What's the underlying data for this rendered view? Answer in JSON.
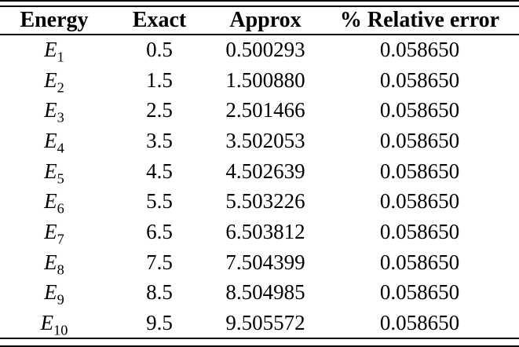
{
  "table": {
    "columns": [
      "Energy",
      "Exact",
      "Approx",
      "% Relative error"
    ],
    "rows": [
      {
        "symbol": "E",
        "subscript": "1",
        "exact": "0.5",
        "approx": "0.500293",
        "error": "0.058650"
      },
      {
        "symbol": "E",
        "subscript": "2",
        "exact": "1.5",
        "approx": "1.500880",
        "error": "0.058650"
      },
      {
        "symbol": "E",
        "subscript": "3",
        "exact": "2.5",
        "approx": "2.501466",
        "error": "0.058650"
      },
      {
        "symbol": "E",
        "subscript": "4",
        "exact": "3.5",
        "approx": "3.502053",
        "error": "0.058650"
      },
      {
        "symbol": "E",
        "subscript": "5",
        "exact": "4.5",
        "approx": "4.502639",
        "error": "0.058650"
      },
      {
        "symbol": "E",
        "subscript": "6",
        "exact": "5.5",
        "approx": "5.503226",
        "error": "0.058650"
      },
      {
        "symbol": "E",
        "subscript": "7",
        "exact": "6.5",
        "approx": "6.503812",
        "error": "0.058650"
      },
      {
        "symbol": "E",
        "subscript": "8",
        "exact": "7.5",
        "approx": "7.504399",
        "error": "0.058650"
      },
      {
        "symbol": "E",
        "subscript": "9",
        "exact": "8.5",
        "approx": "8.504985",
        "error": "0.058650"
      },
      {
        "symbol": "E",
        "subscript": "10",
        "exact": "9.5",
        "approx": "9.505572",
        "error": "0.058650"
      }
    ]
  }
}
